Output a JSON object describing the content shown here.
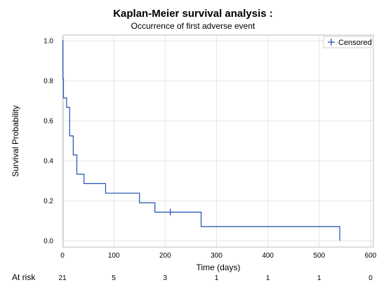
{
  "chart_data": {
    "type": "line",
    "title": "Kaplan-Meier survival analysis :",
    "subtitle": "Occurrence of first adverse event",
    "xlabel": "Time (days)",
    "ylabel": "Survival Probability",
    "xlim": [
      0,
      600
    ],
    "ylim": [
      0,
      1.0
    ],
    "x_ticks": [
      "0",
      "100",
      "200",
      "300",
      "400",
      "500",
      "600"
    ],
    "y_ticks": [
      "0.0",
      "0.2",
      "0.4",
      "0.6",
      "0.8",
      "1.0"
    ],
    "grid": true,
    "legend": {
      "position": "top-right",
      "entries": [
        {
          "marker": "+",
          "label": "Censored"
        }
      ]
    },
    "series": [
      {
        "step": "post",
        "color": "#1f4fb4",
        "x": [
          0,
          1,
          2,
          8,
          14,
          21,
          28,
          42,
          84,
          150,
          180,
          270,
          540
        ],
        "y": [
          1.0,
          0.81,
          0.714,
          0.667,
          0.524,
          0.429,
          0.333,
          0.286,
          0.238,
          0.19,
          0.143,
          0.071,
          0.0
        ]
      }
    ],
    "censored": [
      {
        "x": 210,
        "y": 0.143
      }
    ],
    "risk_table": {
      "label": "At risk",
      "times": [
        0,
        100,
        200,
        300,
        400,
        500,
        600
      ],
      "counts": [
        "21",
        "5",
        "3",
        "1",
        "1",
        "1",
        "0"
      ]
    }
  }
}
